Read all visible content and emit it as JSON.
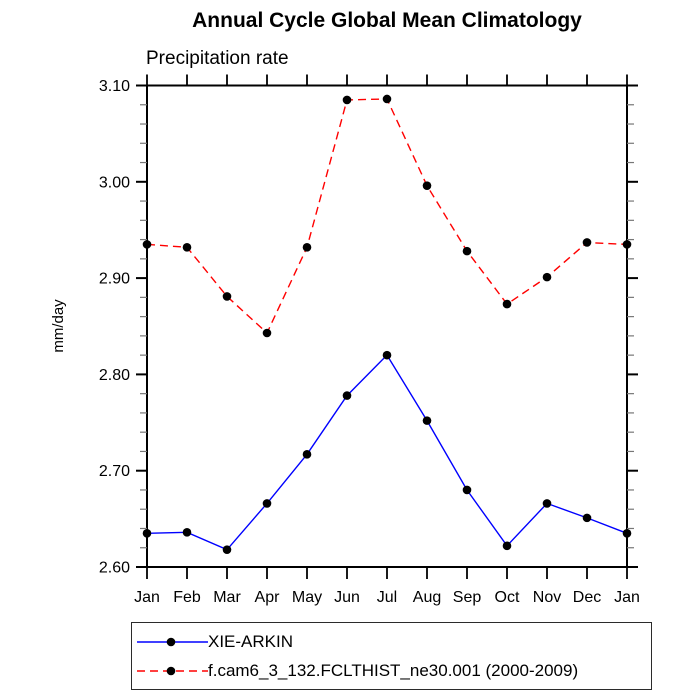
{
  "chart_data": {
    "type": "line",
    "title": "Annual Cycle Global Mean Climatology",
    "subtitle": "Precipitation rate",
    "ylabel": "mm/day",
    "x_ticklabels": [
      "Jan",
      "Feb",
      "Mar",
      "Apr",
      "May",
      "Jun",
      "Jul",
      "Aug",
      "Sep",
      "Oct",
      "Nov",
      "Dec",
      "Jan"
    ],
    "ylim": [
      2.6,
      3.1
    ],
    "y_major_step": 0.1,
    "y_minor_step": 0.02,
    "y_tick_labels": [
      "2.60",
      "2.70",
      "2.80",
      "2.90",
      "3.00",
      "3.10"
    ],
    "grid": false,
    "legend_position": "below-plot-left",
    "axis_color": "#000000",
    "minor_tick_color": "#777777",
    "series": [
      {
        "name": "XIE-ARKIN",
        "color": "#0000ff",
        "line_style": "solid",
        "marker": "filled-circle",
        "marker_color": "#000000",
        "values": [
          2.635,
          2.636,
          2.618,
          2.666,
          2.717,
          2.778,
          2.82,
          2.752,
          2.68,
          2.622,
          2.666,
          2.651,
          2.635
        ]
      },
      {
        "name": "f.cam6_3_132.FCLTHIST_ne30.001 (2000-2009)",
        "color": "#ff0000",
        "line_style": "dashed",
        "marker": "filled-circle",
        "marker_color": "#000000",
        "values": [
          2.935,
          2.932,
          2.881,
          2.843,
          2.932,
          3.085,
          3.086,
          2.996,
          2.928,
          2.873,
          2.901,
          2.937,
          2.935
        ]
      }
    ]
  }
}
